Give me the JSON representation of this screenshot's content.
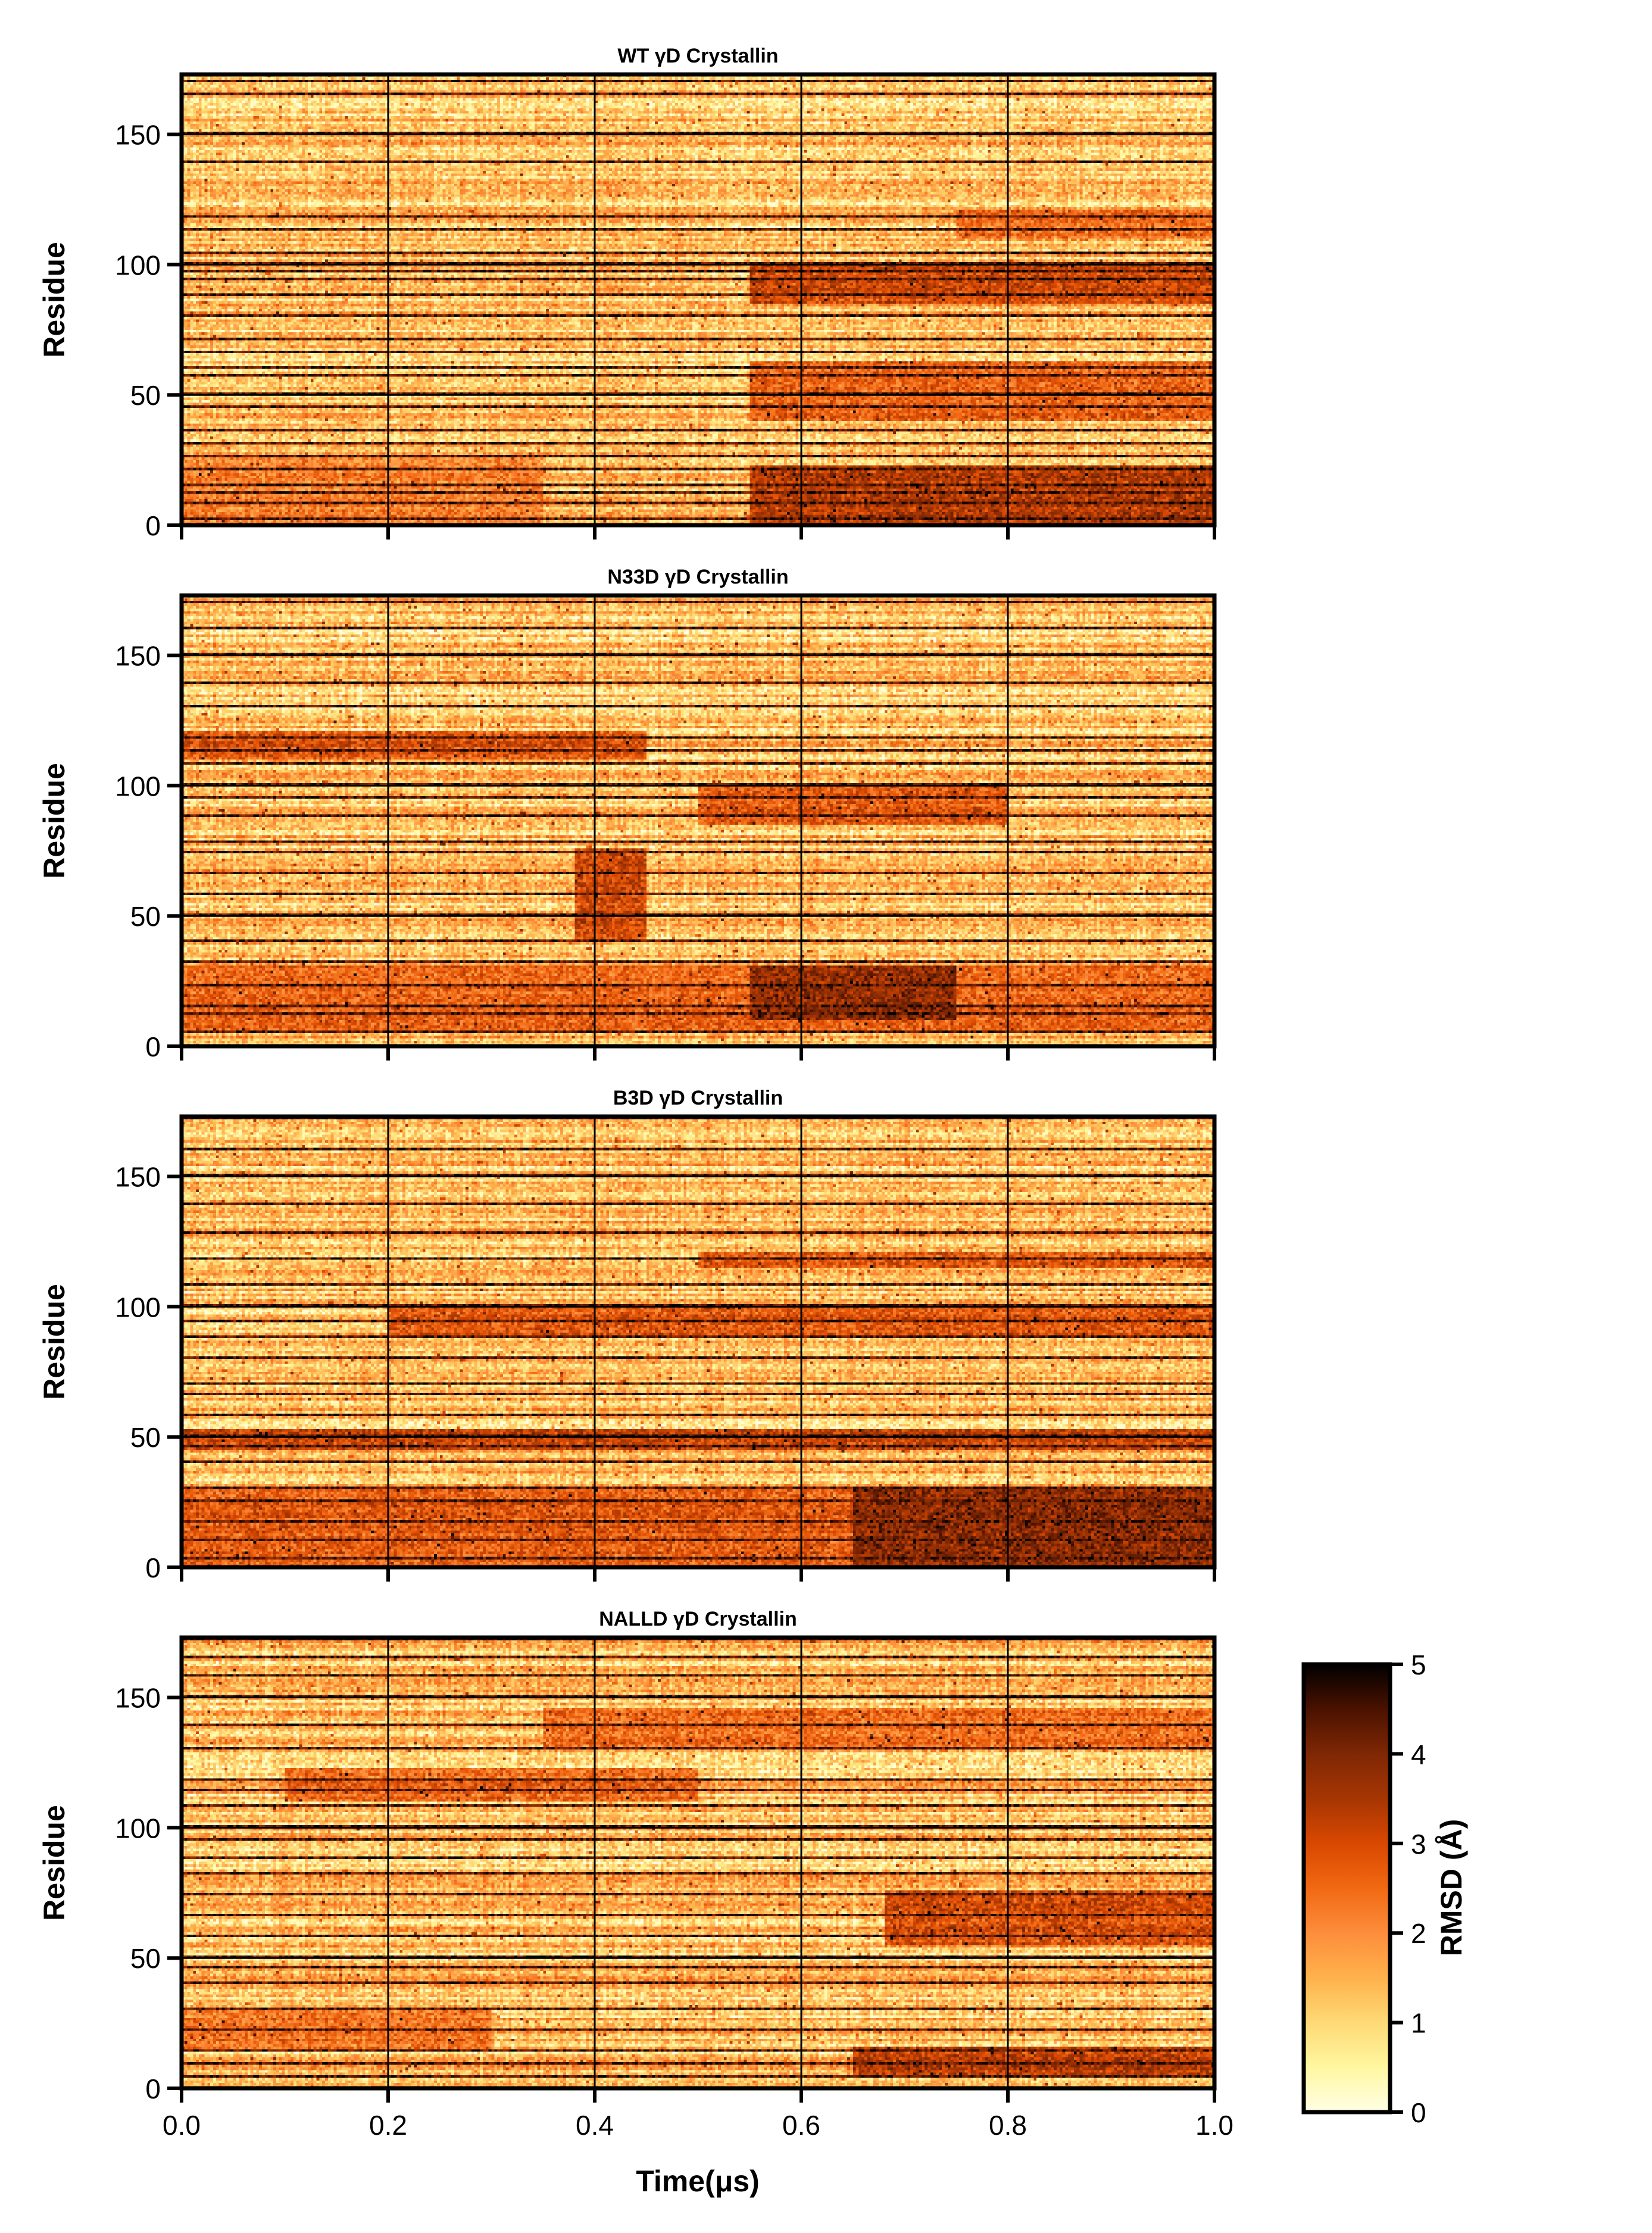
{
  "chart_data": {
    "type": "heatmap",
    "xlabel": "Time(μs)",
    "xlim": [
      0.0,
      1.0
    ],
    "x_ticks": [
      "0.0",
      "0.2",
      "0.4",
      "0.6",
      "0.8",
      "1.0"
    ],
    "ylabel": "Residue",
    "ylim": [
      0,
      173
    ],
    "y_ticks": [
      "0",
      "50",
      "100",
      "150"
    ],
    "grid": true,
    "colorbar": {
      "label": "RMSD (Å)",
      "range": [
        0,
        5
      ],
      "ticks": [
        "0",
        "1",
        "2",
        "3",
        "4",
        "5"
      ],
      "stops": [
        "#ffffe5",
        "#fff7a0",
        "#fed976",
        "#feb24c",
        "#fd8d3c",
        "#f16913",
        "#d94801",
        "#a63603",
        "#7f2704",
        "#4a1200",
        "#000000"
      ]
    },
    "panels": [
      {
        "title": "WT γD Crystallin",
        "dark_residue_rows": [
          2,
          8,
          12,
          15,
          21,
          26,
          31,
          36,
          45,
          50,
          57,
          60,
          66,
          71,
          80,
          88,
          94,
          97,
          100,
          104,
          113,
          118,
          139,
          150,
          165,
          170
        ],
        "regions": [
          {
            "t": [
              0.55,
              1.0
            ],
            "residues": [
              0,
              22
            ],
            "rmsd": 2.9
          },
          {
            "t": [
              0.55,
              1.0
            ],
            "residues": [
              40,
              62
            ],
            "rmsd": 2.2
          },
          {
            "t": [
              0.55,
              1.0
            ],
            "residues": [
              85,
              100
            ],
            "rmsd": 2.6
          },
          {
            "t": [
              0.75,
              1.0
            ],
            "residues": [
              110,
              120
            ],
            "rmsd": 2.0
          },
          {
            "t": [
              0.0,
              0.35
            ],
            "residues": [
              0,
              25
            ],
            "rmsd": 1.7
          }
        ]
      },
      {
        "title": "N33D γD Crystallin",
        "dark_residue_rows": [
          5,
          12,
          15,
          23,
          32,
          40,
          50,
          58,
          66,
          74,
          78,
          88,
          95,
          100,
          108,
          113,
          118,
          130,
          139,
          150,
          160,
          170
        ],
        "regions": [
          {
            "t": [
              0.0,
              1.0
            ],
            "residues": [
              5,
              30
            ],
            "rmsd": 2.1
          },
          {
            "t": [
              0.55,
              0.75
            ],
            "residues": [
              10,
              30
            ],
            "rmsd": 2.9
          },
          {
            "t": [
              0.38,
              0.45
            ],
            "residues": [
              40,
              75
            ],
            "rmsd": 2.6
          },
          {
            "t": [
              0.0,
              0.45
            ],
            "residues": [
              110,
              120
            ],
            "rmsd": 2.4
          },
          {
            "t": [
              0.5,
              0.8
            ],
            "residues": [
              85,
              100
            ],
            "rmsd": 2.3
          }
        ]
      },
      {
        "title": "B3D γD Crystallin",
        "dark_residue_rows": [
          3,
          10,
          17,
          25,
          30,
          40,
          46,
          50,
          58,
          66,
          70,
          80,
          88,
          94,
          100,
          108,
          118,
          128,
          139,
          150,
          160,
          172
        ],
        "regions": [
          {
            "t": [
              0.0,
              1.0
            ],
            "residues": [
              0,
              30
            ],
            "rmsd": 2.3
          },
          {
            "t": [
              0.65,
              1.0
            ],
            "residues": [
              0,
              30
            ],
            "rmsd": 2.9
          },
          {
            "t": [
              0.0,
              1.0
            ],
            "residues": [
              45,
              52
            ],
            "rmsd": 2.7
          },
          {
            "t": [
              0.2,
              1.0
            ],
            "residues": [
              88,
              100
            ],
            "rmsd": 2.4
          },
          {
            "t": [
              0.5,
              1.0
            ],
            "residues": [
              115,
              120
            ],
            "rmsd": 2.4
          }
        ]
      },
      {
        "title": "NALLD γD Crystallin",
        "dark_residue_rows": [
          4,
          9,
          14,
          22,
          30,
          40,
          46,
          50,
          58,
          66,
          74,
          82,
          88,
          95,
          100,
          108,
          114,
          118,
          130,
          139,
          150,
          158,
          165,
          172
        ],
        "regions": [
          {
            "t": [
              0.65,
              1.0
            ],
            "residues": [
              5,
              15
            ],
            "rmsd": 2.8
          },
          {
            "t": [
              0.68,
              1.0
            ],
            "residues": [
              55,
              75
            ],
            "rmsd": 2.5
          },
          {
            "t": [
              0.1,
              0.5
            ],
            "residues": [
              110,
              122
            ],
            "rmsd": 2.1
          },
          {
            "t": [
              0.35,
              1.0
            ],
            "residues": [
              130,
              145
            ],
            "rmsd": 2.0
          },
          {
            "t": [
              0.0,
              0.3
            ],
            "residues": [
              15,
              30
            ],
            "rmsd": 1.9
          }
        ]
      }
    ]
  }
}
